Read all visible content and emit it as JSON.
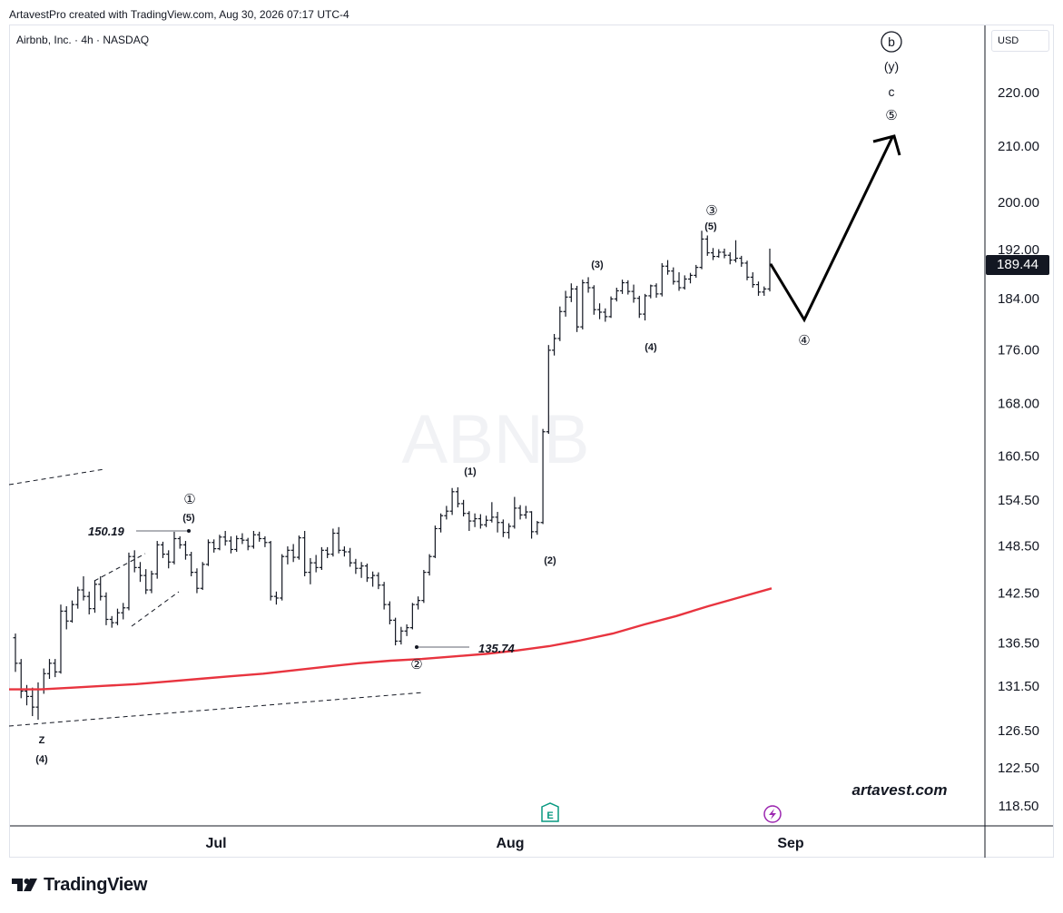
{
  "attribution": "ArtavestPro created with TradingView.com, Aug 30, 2026 07:17 UTC-4",
  "symbol_title": "Airbnb, Inc. · 4h · NASDAQ",
  "currency": "USD",
  "watermark": "ABNB",
  "website": "artavest.com",
  "footer_brand": "TradingView",
  "last_price_label": "189.44",
  "colors": {
    "candle": "#131722",
    "moving_average": "#e8343f",
    "watermark": "#f1f2f5",
    "price_tag_bg": "#131722",
    "earnings_icon": "#089981",
    "dividend_icon": "#9c27b0"
  },
  "icons": [
    "earnings-e-icon",
    "lightning-event-icon",
    "tradingview-logo-icon"
  ],
  "chart_data": {
    "type": "ohlc",
    "timeframe": "4h",
    "x_axis": {
      "tick_labels": [
        "Jul",
        "Aug",
        "Sep"
      ]
    },
    "y_axis": {
      "scale": "log",
      "ylim": [
        116.5,
        235
      ],
      "tick_labels": [
        "220.00",
        "210.00",
        "200.00",
        "192.00",
        "184.00",
        "176.00",
        "168.00",
        "160.50",
        "154.50",
        "148.50",
        "142.50",
        "136.50",
        "131.50",
        "126.50",
        "122.50",
        "118.50"
      ]
    },
    "grid": false,
    "price_bars": [
      [
        137.0,
        137.5,
        133.0,
        134.0
      ],
      [
        134,
        134.5,
        130.0,
        130.8
      ],
      [
        130.8,
        131.5,
        129.2,
        130.2
      ],
      [
        130.2,
        131.2,
        128.0,
        129.0
      ],
      [
        129.0,
        131.8,
        127.6,
        131.0
      ],
      [
        131,
        133.4,
        130.5,
        132.8
      ],
      [
        132.8,
        134.5,
        132.2,
        134.0
      ],
      [
        134,
        134.5,
        132.4,
        133.0
      ],
      [
        133.0,
        141.0,
        132.8,
        140.2
      ],
      [
        140.2,
        140.8,
        138.0,
        139.0
      ],
      [
        139,
        141.5,
        138.8,
        141.0
      ],
      [
        141,
        143.2,
        140.5,
        142.8
      ],
      [
        142.8,
        144.5,
        141.5,
        142.0
      ],
      [
        142,
        142.6,
        139.8,
        140.5
      ],
      [
        140.5,
        144.0,
        140.0,
        143.5
      ],
      [
        143.5,
        144.5,
        141.5,
        142.0
      ],
      [
        142.0,
        142.5,
        138.5,
        139.2
      ],
      [
        139.2,
        139.6,
        138.2,
        138.8
      ],
      [
        138.8,
        140.5,
        138.5,
        140.0
      ],
      [
        140,
        141.2,
        139.2,
        140.6
      ],
      [
        140.6,
        147.5,
        140.3,
        147.0
      ],
      [
        147,
        147.8,
        145.0,
        145.6
      ],
      [
        145.6,
        146.3,
        143.8,
        144.6
      ],
      [
        144.6,
        145.4,
        142.3,
        142.8
      ],
      [
        142.8,
        145.2,
        142.4,
        144.8
      ],
      [
        144.8,
        149.0,
        144.2,
        148.5
      ],
      [
        148.5,
        148.9,
        146.8,
        147.3
      ],
      [
        147.3,
        147.8,
        145.5,
        146.3
      ],
      [
        146.3,
        150.19,
        146.0,
        149.3
      ],
      [
        149.3,
        149.6,
        148.0,
        148.5
      ],
      [
        148.5,
        149.0,
        146.6,
        147.2
      ],
      [
        147.2,
        147.6,
        144.5,
        145.0
      ],
      [
        145,
        145.5,
        142.4,
        143.0
      ],
      [
        143.0,
        146.3,
        142.8,
        146.0
      ],
      [
        146,
        149.2,
        145.8,
        148.8
      ],
      [
        148.8,
        149.2,
        147.5,
        148.0
      ],
      [
        148,
        149.8,
        147.8,
        149.5
      ],
      [
        149.5,
        150.3,
        148.4,
        149.0
      ],
      [
        149,
        149.6,
        147.4,
        147.9
      ],
      [
        147.9,
        149.7,
        147.6,
        149.3
      ],
      [
        149.3,
        150.0,
        148.6,
        149.1
      ],
      [
        149.1,
        149.4,
        147.8,
        148.3
      ],
      [
        148.3,
        150.3,
        148.0,
        149.8
      ],
      [
        149.8,
        150.2,
        148.9,
        149.3
      ],
      [
        149.3,
        149.6,
        148.2,
        148.8
      ],
      [
        148.8,
        149.0,
        141.5,
        142.0
      ],
      [
        142,
        142.6,
        141.0,
        141.8
      ],
      [
        141.8,
        147.3,
        141.5,
        147.0
      ],
      [
        147.0,
        148.3,
        146.0,
        147.8
      ],
      [
        147.8,
        148.6,
        146.3,
        146.9
      ],
      [
        146.9,
        149.7,
        146.6,
        149.4
      ],
      [
        149.4,
        150.3,
        144.5,
        145.0
      ],
      [
        145,
        146.8,
        143.5,
        146.2
      ],
      [
        146.2,
        147.2,
        145.0,
        145.6
      ],
      [
        145.6,
        148.2,
        145.3,
        147.8
      ],
      [
        147.8,
        148.2,
        146.8,
        147.3
      ],
      [
        147.3,
        150.6,
        147.0,
        150.0
      ],
      [
        150,
        150.8,
        147.4,
        147.8
      ],
      [
        147.8,
        148.3,
        147.0,
        147.6
      ],
      [
        147.6,
        148.1,
        145.7,
        146.2
      ],
      [
        146.2,
        146.7,
        144.8,
        145.5
      ],
      [
        145.5,
        146.3,
        144.3,
        145.8
      ],
      [
        145.8,
        146.1,
        143.8,
        144.3
      ],
      [
        144.3,
        145.1,
        143.2,
        144.6
      ],
      [
        144.6,
        145.0,
        142.9,
        143.4
      ],
      [
        143.4,
        143.8,
        140.4,
        141.0
      ],
      [
        141,
        141.4,
        138.6,
        139.1
      ],
      [
        139.1,
        139.4,
        136.1,
        136.6
      ],
      [
        136.6,
        138.3,
        136.2,
        137.8
      ],
      [
        137.8,
        138.6,
        137.2,
        138.2
      ],
      [
        138.2,
        141.2,
        138.0,
        141.0
      ],
      [
        141,
        142.0,
        140.4,
        141.5
      ],
      [
        141.5,
        145.3,
        141.2,
        145.0
      ],
      [
        145,
        147.3,
        144.6,
        147.0
      ],
      [
        147,
        151.0,
        146.8,
        150.6
      ],
      [
        150.6,
        152.6,
        150.1,
        152.3
      ],
      [
        152.3,
        153.6,
        151.8,
        152.9
      ],
      [
        152.9,
        156.0,
        152.4,
        155.5
      ],
      [
        155.5,
        156.1,
        153.4,
        153.9
      ],
      [
        153.9,
        154.4,
        152.2,
        152.6
      ],
      [
        152.6,
        152.9,
        150.3,
        151.6
      ],
      [
        151.6,
        152.6,
        150.8,
        151.9
      ],
      [
        151.9,
        152.5,
        150.6,
        151.1
      ],
      [
        151.1,
        152.3,
        150.8,
        151.7
      ],
      [
        151.7,
        154.1,
        151.4,
        152.1
      ],
      [
        152.1,
        152.8,
        150.1,
        151.4
      ],
      [
        151.4,
        151.8,
        149.5,
        150.1
      ],
      [
        150.1,
        151.3,
        149.3,
        150.9
      ],
      [
        150.9,
        154.8,
        150.6,
        153.3
      ],
      [
        153.3,
        153.7,
        151.8,
        152.4
      ],
      [
        152.4,
        153.6,
        151.9,
        152.8
      ],
      [
        152.8,
        152.9,
        149.3,
        150.2
      ],
      [
        150.2,
        151.6,
        149.8,
        151.4
      ],
      [
        151.4,
        164.2,
        151.2,
        163.8
      ],
      [
        163.8,
        176.6,
        163.5,
        175.8
      ],
      [
        175.8,
        178.3,
        175.0,
        177.6
      ],
      [
        177.6,
        182.6,
        177.2,
        181.8
      ],
      [
        181.8,
        185.1,
        181.0,
        184.1
      ],
      [
        184.1,
        186.3,
        183.3,
        185.4
      ],
      [
        185.4,
        185.9,
        178.6,
        179.4
      ],
      [
        179.4,
        186.9,
        179.0,
        186.4
      ],
      [
        186.4,
        187.3,
        184.8,
        185.6
      ],
      [
        185.6,
        186.0,
        181.3,
        182.1
      ],
      [
        182.1,
        183.1,
        180.6,
        181.7
      ],
      [
        181.7,
        182.3,
        180.2,
        181.0
      ],
      [
        181,
        184.2,
        180.8,
        183.8
      ],
      [
        183.8,
        185.6,
        183.4,
        185.1
      ],
      [
        185.1,
        186.9,
        184.6,
        186.4
      ],
      [
        186.4,
        186.8,
        184.5,
        185.0
      ],
      [
        185,
        186.1,
        183.2,
        183.9
      ],
      [
        183.9,
        184.3,
        180.8,
        181.4
      ],
      [
        181.4,
        184.6,
        180.4,
        184.3
      ],
      [
        184.3,
        186.1,
        183.9,
        185.9
      ],
      [
        185.9,
        186.3,
        184.0,
        184.6
      ],
      [
        184.6,
        189.6,
        184.2,
        189.1
      ],
      [
        189.1,
        190.1,
        187.7,
        188.3
      ],
      [
        188.3,
        188.9,
        186.1,
        186.6
      ],
      [
        186.6,
        188.1,
        185.1,
        185.6
      ],
      [
        185.6,
        187.6,
        185.3,
        187.0
      ],
      [
        187,
        188.0,
        186.3,
        187.6
      ],
      [
        187.6,
        189.3,
        187.2,
        188.9
      ],
      [
        188.9,
        195.0,
        188.6,
        193.6
      ],
      [
        193.6,
        194.2,
        190.8,
        191.3
      ],
      [
        191.3,
        192.1,
        190.1,
        190.7
      ],
      [
        190.7,
        191.9,
        190.5,
        191.4
      ],
      [
        191.4,
        192.0,
        190.4,
        190.9
      ],
      [
        190.9,
        191.4,
        189.4,
        190.1
      ],
      [
        190.1,
        193.4,
        189.7,
        190.4
      ],
      [
        190.4,
        190.8,
        189.0,
        189.6
      ],
      [
        189.6,
        190.0,
        186.8,
        187.3
      ],
      [
        187.3,
        188.1,
        185.6,
        186.1
      ],
      [
        186.1,
        186.6,
        184.3,
        184.9
      ],
      [
        184.9,
        185.8,
        184.3,
        185.4
      ],
      [
        185.4,
        192.0,
        185.0,
        189.44
      ]
    ],
    "series": [
      {
        "name": "",
        "type": "line",
        "color": "#e8343f",
        "values": [
          131.0,
          131.0,
          131.2,
          131.4,
          131.6,
          131.9,
          132.2,
          132.5,
          132.8,
          133.2,
          133.6,
          134.0,
          134.3,
          134.5,
          134.8,
          135.1,
          135.5,
          136.0,
          136.7,
          137.5,
          138.6,
          139.6,
          140.8,
          141.9,
          143.0
        ]
      }
    ],
    "annotations": {
      "price_levels": [
        "150.19",
        "135.74"
      ],
      "wave_labels": [
        "①",
        "(5)",
        "②",
        "(1)",
        "(2)",
        "(3)",
        "(4)",
        "③",
        "(5)",
        "④",
        "(y)",
        "c",
        "⑤",
        "b",
        "z",
        "(4)"
      ],
      "projection_points": [
        189.44,
        180.5,
        211.5
      ]
    }
  }
}
